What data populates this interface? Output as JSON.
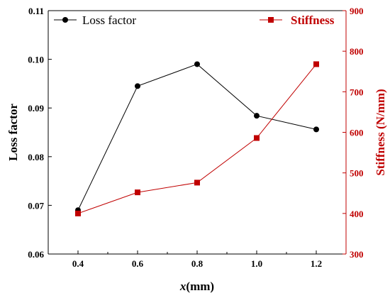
{
  "chart_data": {
    "type": "line",
    "x": [
      0.4,
      0.6,
      0.8,
      1.0,
      1.2
    ],
    "xlabel_var": "x",
    "xlabel_unit": "(mm)",
    "xlim": [
      0.3,
      1.3
    ],
    "xticks": [
      "0.4",
      "0.6",
      "0.8",
      "1.0",
      "1.2"
    ],
    "ylabel_left": "Loss factor",
    "ylim_left": [
      0.06,
      0.11
    ],
    "yticks_left": [
      "0.06",
      "0.07",
      "0.08",
      "0.09",
      "0.10",
      "0.11"
    ],
    "ylabel_right": "Stiffness (N/mm)",
    "ylim_right": [
      300,
      900
    ],
    "yticks_right": [
      "300",
      "400",
      "500",
      "600",
      "700",
      "800",
      "900"
    ],
    "series": [
      {
        "name": "Loss factor",
        "axis": "left",
        "marker": "circle",
        "color": "#000000",
        "values": [
          0.069,
          0.0945,
          0.099,
          0.0884,
          0.0856
        ]
      },
      {
        "name": "Stiffness",
        "axis": "right",
        "marker": "square",
        "color": "#c00000",
        "values": [
          400,
          452,
          476,
          586,
          768
        ]
      }
    ],
    "legend": "top",
    "grid": false,
    "right_axis_color": "#c00000"
  }
}
